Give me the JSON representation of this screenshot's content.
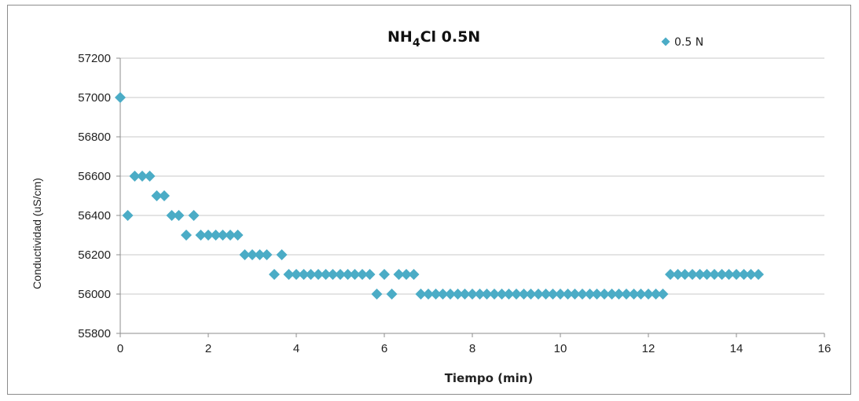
{
  "chart_data": {
    "type": "scatter",
    "title": "NH4Cl 0.5N",
    "title_parts": {
      "prefix": "NH",
      "subscript": "4",
      "suffix": "Cl 0.5N"
    },
    "xlabel": "Tiempo (min)",
    "ylabel": "Conductividad (uS/cm)",
    "xlim": [
      0,
      16
    ],
    "ylim": [
      55800,
      57200
    ],
    "xticks": [
      0,
      2,
      4,
      6,
      8,
      10,
      12,
      14,
      16
    ],
    "yticks": [
      55800,
      56000,
      56200,
      56400,
      56600,
      56800,
      57000,
      57200
    ],
    "grid": "horizontal",
    "legend_position": "top-right",
    "marker": "diamond",
    "color": "#4bacc6",
    "series": [
      {
        "name": "0.5 N",
        "x": [
          0,
          0.17,
          0.33,
          0.5,
          0.67,
          0.83,
          1.0,
          1.17,
          1.33,
          1.5,
          1.67,
          1.83,
          2.0,
          2.17,
          2.33,
          2.5,
          2.67,
          2.83,
          3.0,
          3.17,
          3.33,
          3.5,
          3.67,
          3.83,
          4.0,
          4.17,
          4.33,
          4.5,
          4.67,
          4.83,
          5.0,
          5.17,
          5.33,
          5.5,
          5.67,
          5.83,
          6.0,
          6.17,
          6.33,
          6.5,
          6.67,
          6.83,
          7.0,
          7.17,
          7.33,
          7.5,
          7.67,
          7.83,
          8.0,
          8.17,
          8.33,
          8.5,
          8.67,
          8.83,
          9.0,
          9.17,
          9.33,
          9.5,
          9.67,
          9.83,
          10.0,
          10.17,
          10.33,
          10.5,
          10.67,
          10.83,
          11.0,
          11.17,
          11.33,
          11.5,
          11.67,
          11.83,
          12.0,
          12.17,
          12.33,
          12.5,
          12.67,
          12.83,
          13.0,
          13.17,
          13.33,
          13.5,
          13.67,
          13.83,
          14.0,
          14.17,
          14.33,
          14.5
        ],
        "y": [
          57000,
          56400,
          56600,
          56600,
          56600,
          56500,
          56500,
          56400,
          56400,
          56300,
          56400,
          56300,
          56300,
          56300,
          56300,
          56300,
          56300,
          56200,
          56200,
          56200,
          56200,
          56100,
          56200,
          56100,
          56100,
          56100,
          56100,
          56100,
          56100,
          56100,
          56100,
          56100,
          56100,
          56100,
          56100,
          56000,
          56100,
          56000,
          56100,
          56100,
          56100,
          56000,
          56000,
          56000,
          56000,
          56000,
          56000,
          56000,
          56000,
          56000,
          56000,
          56000,
          56000,
          56000,
          56000,
          56000,
          56000,
          56000,
          56000,
          56000,
          56000,
          56000,
          56000,
          56000,
          56000,
          56000,
          56000,
          56000,
          56000,
          56000,
          56000,
          56000,
          56000,
          56000,
          56000,
          56100,
          56100,
          56100,
          56100,
          56100,
          56100,
          56100,
          56100,
          56100,
          56100,
          56100,
          56100,
          56100
        ]
      }
    ]
  }
}
